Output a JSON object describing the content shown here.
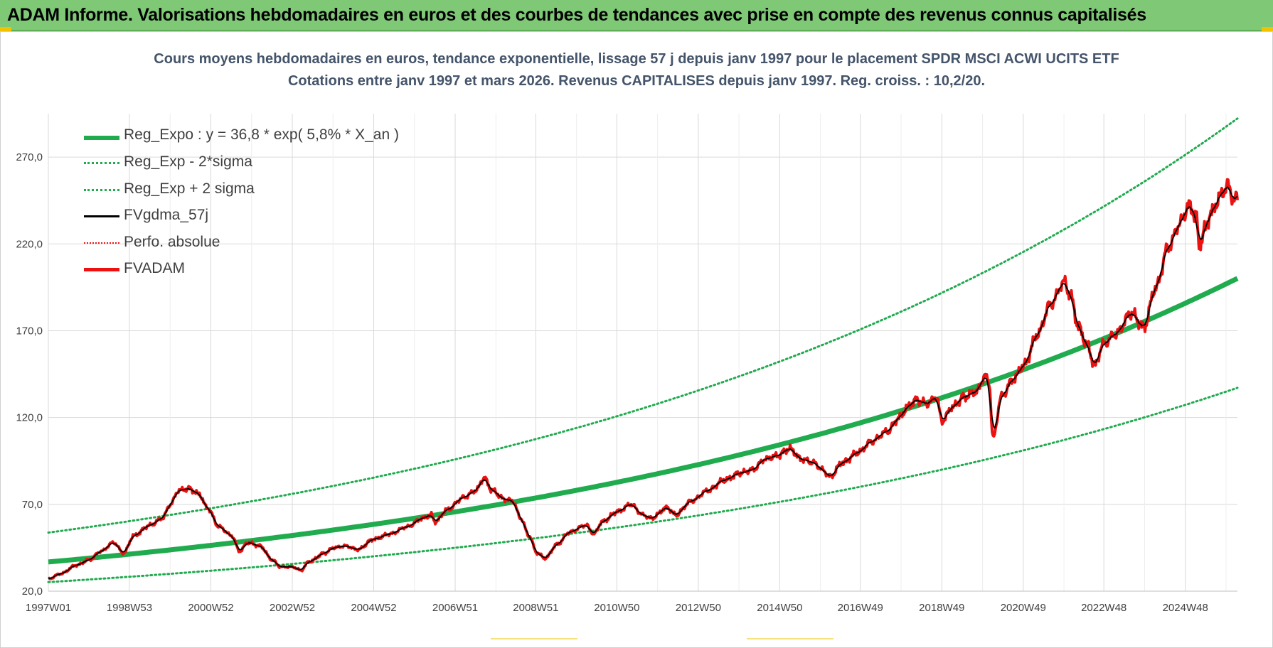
{
  "banner": {
    "title": "ADAM Informe. Valorisations hebdomadaires en euros et des courbes de tendances avec prise en compte des revenus connus capitalisés"
  },
  "colors": {
    "banner_bg": "#7ec876",
    "trend_green": "#1fab4e",
    "price_red": "#ee1111",
    "smooth_black": "#000000",
    "title_text": "#44546a",
    "corner_accent": "#f2c200"
  },
  "chart_data": {
    "type": "line",
    "title_line1": "Cours moyens hebdomadaires en euros, tendance exponentielle, lissage 57 j depuis janv 1997  pour le placement SPDR MSCI ACWI UCITS ETF",
    "title_line2": "Cotations entre janv 1997 et mars 2026. Revenus CAPITALISES depuis janv 1997. Reg. croiss. : 10,2/20.",
    "xlabel": "",
    "ylabel": "",
    "ylim": [
      20,
      295
    ],
    "xlim": [
      1997.0,
      2026.2
    ],
    "y_ticks": [
      20,
      70,
      120,
      170,
      220,
      270
    ],
    "y_tick_labels": [
      "20,0",
      "70,0",
      "120,0",
      "170,0",
      "220,0",
      "270,0"
    ],
    "x_ticks": [
      1997.0,
      1998.99,
      2000.99,
      2002.99,
      2004.99,
      2006.99,
      2008.97,
      2010.96,
      2012.96,
      2014.96,
      2016.94,
      2018.94,
      2020.94,
      2022.92,
      2024.92
    ],
    "x_tick_labels": [
      "1997W01",
      "1998W53",
      "2000W52",
      "2002W52",
      "2004W52",
      "2006W51",
      "2008W51",
      "2010W50",
      "2012W50",
      "2014W50",
      "2016W49",
      "2018W49",
      "2020W49",
      "2022W48",
      "2024W48"
    ],
    "legend": [
      {
        "name": "Reg_Expo : y = 36,8 * exp( 5,8% *  X_an )",
        "style": "solid-thick",
        "color": "#1fab4e"
      },
      {
        "name": "Reg_Exp - 2*sigma",
        "style": "dotted",
        "color": "#1fab4e"
      },
      {
        "name": "Reg_Exp + 2 sigma",
        "style": "dotted",
        "color": "#1fab4e"
      },
      {
        "name": "FVgdma_57j",
        "style": "solid",
        "color": "#000000"
      },
      {
        "name": "Perfo. absolue",
        "style": "dotted-thin",
        "color": "#ee1111"
      },
      {
        "name": "FVADAM",
        "style": "solid-thick",
        "color": "#ee1111"
      }
    ],
    "regression": {
      "a": 36.8,
      "rate": 0.058,
      "x0": 1997.0,
      "lower_factor": 0.685,
      "upper_factor": 1.46
    },
    "series": [
      {
        "name": "FVADAM",
        "points": [
          [
            1997.0,
            27
          ],
          [
            1997.3,
            30
          ],
          [
            1997.7,
            35
          ],
          [
            1998.0,
            38
          ],
          [
            1998.3,
            43
          ],
          [
            1998.6,
            48
          ],
          [
            1998.85,
            42
          ],
          [
            1999.1,
            52
          ],
          [
            1999.5,
            58
          ],
          [
            1999.8,
            62
          ],
          [
            2000.0,
            70
          ],
          [
            2000.2,
            78
          ],
          [
            2000.45,
            79
          ],
          [
            2000.7,
            76
          ],
          [
            2000.9,
            68
          ],
          [
            2001.2,
            57
          ],
          [
            2001.5,
            52
          ],
          [
            2001.7,
            43
          ],
          [
            2001.9,
            48
          ],
          [
            2002.2,
            46
          ],
          [
            2002.5,
            38
          ],
          [
            2002.7,
            34
          ],
          [
            2003.0,
            34
          ],
          [
            2003.2,
            32
          ],
          [
            2003.4,
            37
          ],
          [
            2003.8,
            42
          ],
          [
            2004.0,
            45
          ],
          [
            2004.3,
            46
          ],
          [
            2004.6,
            44
          ],
          [
            2005.0,
            50
          ],
          [
            2005.4,
            53
          ],
          [
            2005.8,
            57
          ],
          [
            2006.2,
            62
          ],
          [
            2006.4,
            64
          ],
          [
            2006.5,
            60
          ],
          [
            2006.8,
            67
          ],
          [
            2007.2,
            74
          ],
          [
            2007.5,
            78
          ],
          [
            2007.7,
            85
          ],
          [
            2007.9,
            78
          ],
          [
            2008.2,
            73
          ],
          [
            2008.4,
            72
          ],
          [
            2008.6,
            62
          ],
          [
            2008.8,
            52
          ],
          [
            2009.0,
            42
          ],
          [
            2009.2,
            39
          ],
          [
            2009.5,
            47
          ],
          [
            2009.8,
            54
          ],
          [
            2010.2,
            58
          ],
          [
            2010.4,
            53
          ],
          [
            2010.6,
            60
          ],
          [
            2011.0,
            66
          ],
          [
            2011.3,
            70
          ],
          [
            2011.6,
            64
          ],
          [
            2011.8,
            62
          ],
          [
            2012.2,
            68
          ],
          [
            2012.4,
            64
          ],
          [
            2012.8,
            72
          ],
          [
            2013.2,
            78
          ],
          [
            2013.6,
            84
          ],
          [
            2014.0,
            88
          ],
          [
            2014.3,
            90
          ],
          [
            2014.6,
            96
          ],
          [
            2014.9,
            98
          ],
          [
            2015.2,
            102
          ],
          [
            2015.5,
            96
          ],
          [
            2015.8,
            94
          ],
          [
            2016.0,
            90
          ],
          [
            2016.2,
            86
          ],
          [
            2016.5,
            94
          ],
          [
            2016.9,
            100
          ],
          [
            2017.2,
            106
          ],
          [
            2017.6,
            112
          ],
          [
            2017.9,
            120
          ],
          [
            2018.1,
            126
          ],
          [
            2018.3,
            130
          ],
          [
            2018.6,
            128
          ],
          [
            2018.8,
            132
          ],
          [
            2018.95,
            118
          ],
          [
            2019.2,
            126
          ],
          [
            2019.5,
            132
          ],
          [
            2019.8,
            135
          ],
          [
            2020.0,
            144
          ],
          [
            2020.1,
            140
          ],
          [
            2020.2,
            108
          ],
          [
            2020.4,
            132
          ],
          [
            2020.7,
            142
          ],
          [
            2020.95,
            150
          ],
          [
            2021.3,
            168
          ],
          [
            2021.6,
            185
          ],
          [
            2021.95,
            198
          ],
          [
            2022.1,
            190
          ],
          [
            2022.3,
            172
          ],
          [
            2022.5,
            162
          ],
          [
            2022.7,
            150
          ],
          [
            2022.9,
            162
          ],
          [
            2023.2,
            168
          ],
          [
            2023.6,
            180
          ],
          [
            2023.9,
            172
          ],
          [
            2024.2,
            195
          ],
          [
            2024.5,
            218
          ],
          [
            2024.8,
            232
          ],
          [
            2025.0,
            242
          ],
          [
            2025.2,
            236
          ],
          [
            2025.25,
            218
          ],
          [
            2025.4,
            228
          ],
          [
            2025.55,
            238
          ],
          [
            2025.8,
            248
          ],
          [
            2025.95,
            254
          ],
          [
            2026.1,
            246
          ]
        ]
      }
    ]
  }
}
